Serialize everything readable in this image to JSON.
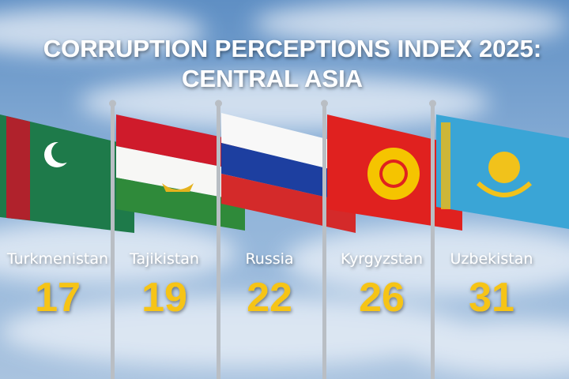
{
  "header": {
    "title_lines": [
      "CORRUPTION PERCEPTIONS INDEX 2025:",
      "CENTRAL ASIA"
    ]
  },
  "items": [
    {
      "name": "Turkmenistan",
      "score": 17
    },
    {
      "name": "Tajikistan",
      "score": 19
    },
    {
      "name": "Russia",
      "score": 22
    },
    {
      "name": "Kyrgyzstan",
      "score": 26
    },
    {
      "name": "Uzbekistan",
      "score": 31
    }
  ]
}
